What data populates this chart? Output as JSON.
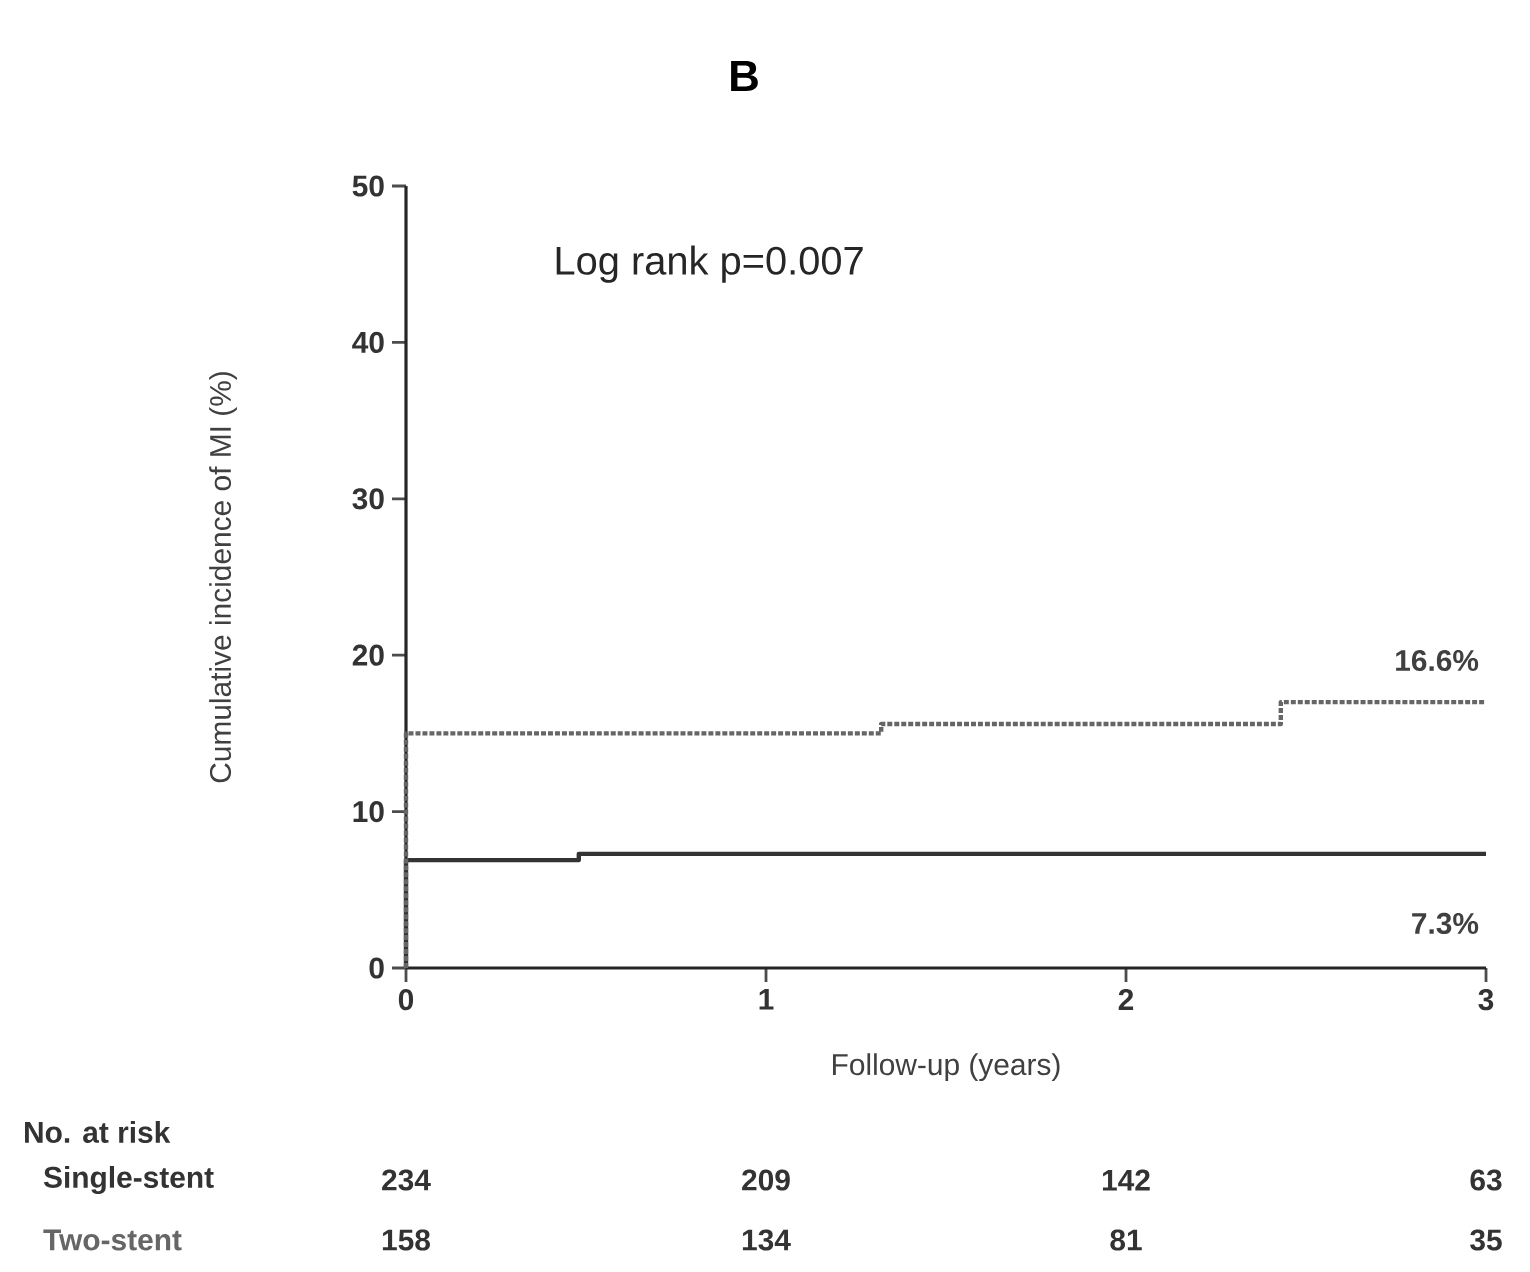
{
  "chart_data": {
    "type": "step",
    "title": "B",
    "xlabel": "Follow-up (years)",
    "ylabel": "Cumulative incidence of MI (%)",
    "series": [
      {
        "name": "Single-stent",
        "color": "#333333",
        "line_style": "solid",
        "x": [
          0,
          0,
          0.48,
          3
        ],
        "values": [
          0,
          6.9,
          7.3,
          7.3
        ]
      },
      {
        "name": "Two-stent",
        "color": "#666666",
        "line_style": "dotted",
        "x": [
          0,
          0,
          1.32,
          2.43,
          3
        ],
        "values": [
          0,
          15,
          15.6,
          17,
          17
        ]
      }
    ],
    "xlim": [
      0,
      3
    ],
    "ylim": [
      0,
      50
    ],
    "xticks": [
      0,
      1,
      2,
      3
    ],
    "yticks": [
      0,
      10,
      20,
      30,
      40,
      50
    ],
    "grid": false,
    "legend": false,
    "annotations": [
      "Log rank p=0.007",
      {
        "text": "16.6%",
        "x": 3,
        "y": 17
      },
      {
        "text": "7.3%",
        "x": 3,
        "y": 7.3
      },
      "No. at risk",
      "234",
      "209",
      "142",
      "63",
      "158",
      "134",
      "81",
      "35"
    ]
  }
}
